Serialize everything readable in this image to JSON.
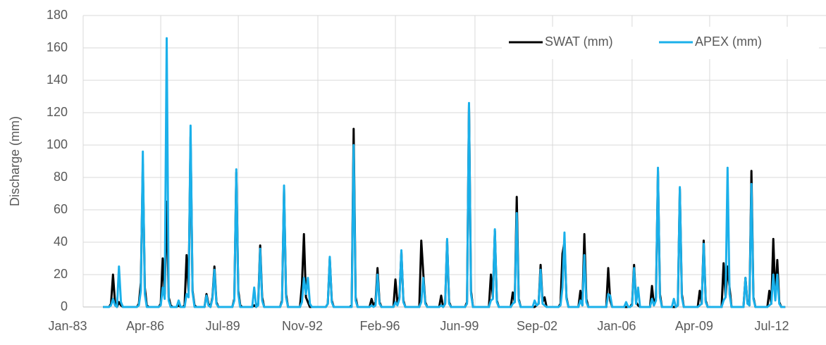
{
  "chart_data": {
    "type": "line",
    "ylabel": "Discharge (mm)",
    "x": [
      "Jan-83",
      "Feb-83",
      "Mar-83",
      "Apr-83",
      "May-83",
      "Jun-83",
      "Jul-83",
      "Aug-83",
      "Sep-83",
      "Oct-83",
      "Nov-83",
      "Dec-83",
      "Jan-84",
      "Feb-84",
      "Mar-84",
      "Apr-84",
      "May-84",
      "Jun-84",
      "Jul-84",
      "Aug-84",
      "Sep-84",
      "Oct-84",
      "Nov-84",
      "Dec-84",
      "Jan-85",
      "Feb-85",
      "Mar-85",
      "Apr-85",
      "May-85",
      "Jun-85",
      "Jul-85",
      "Aug-85",
      "Sep-85",
      "Oct-85",
      "Nov-85",
      "Dec-85",
      "Jan-86",
      "Feb-86",
      "Mar-86",
      "Apr-86",
      "May-86",
      "Jun-86",
      "Jul-86",
      "Aug-86",
      "Sep-86",
      "Oct-86",
      "Nov-86",
      "Dec-86",
      "Jan-87",
      "Feb-87",
      "Mar-87",
      "Apr-87",
      "May-87",
      "Jun-87",
      "Jul-87",
      "Aug-87",
      "Sep-87",
      "Oct-87",
      "Nov-87",
      "Dec-87",
      "Jan-88",
      "Feb-88",
      "Mar-88",
      "Apr-88",
      "May-88",
      "Jun-88",
      "Jul-88",
      "Aug-88",
      "Sep-88",
      "Oct-88",
      "Nov-88",
      "Dec-88",
      "Jan-89",
      "Feb-89",
      "Mar-89",
      "Apr-89",
      "May-89",
      "Jun-89",
      "Jul-89",
      "Aug-89",
      "Sep-89",
      "Oct-89",
      "Nov-89",
      "Dec-89",
      "Jan-90",
      "Feb-90",
      "Mar-90",
      "Apr-90",
      "May-90",
      "Jun-90",
      "Jul-90",
      "Aug-90",
      "Sep-90",
      "Oct-90",
      "Nov-90",
      "Dec-90",
      "Jan-91",
      "Feb-91",
      "Mar-91",
      "Apr-91",
      "May-91",
      "Jun-91",
      "Jul-91",
      "Aug-91",
      "Sep-91",
      "Oct-91",
      "Nov-91",
      "Dec-91",
      "Jan-92",
      "Feb-92",
      "Mar-92",
      "Apr-92",
      "May-92",
      "Jun-92",
      "Jul-92",
      "Aug-92",
      "Sep-92",
      "Oct-92",
      "Nov-92",
      "Dec-92",
      "Jan-93",
      "Feb-93",
      "Mar-93",
      "Apr-93",
      "May-93",
      "Jun-93",
      "Jul-93",
      "Aug-93",
      "Sep-93",
      "Oct-93",
      "Nov-93",
      "Dec-93",
      "Jan-94",
      "Feb-94",
      "Mar-94",
      "Apr-94",
      "May-94",
      "Jun-94",
      "Jul-94",
      "Aug-94",
      "Sep-94",
      "Oct-94",
      "Nov-94",
      "Dec-94",
      "Jan-95",
      "Feb-95",
      "Mar-95",
      "Apr-95",
      "May-95",
      "Jun-95",
      "Jul-95",
      "Aug-95",
      "Sep-95",
      "Oct-95",
      "Nov-95",
      "Dec-95",
      "Jan-96",
      "Feb-96",
      "Mar-96",
      "Apr-96",
      "May-96",
      "Jun-96",
      "Jul-96",
      "Aug-96",
      "Sep-96",
      "Oct-96",
      "Nov-96",
      "Dec-96",
      "Jan-97",
      "Feb-97",
      "Mar-97",
      "Apr-97",
      "May-97",
      "Jun-97",
      "Jul-97",
      "Aug-97",
      "Sep-97",
      "Oct-97",
      "Nov-97",
      "Dec-97",
      "Jan-98",
      "Feb-98",
      "Mar-98",
      "Apr-98",
      "May-98",
      "Jun-98",
      "Jul-98",
      "Aug-98",
      "Sep-98",
      "Oct-98",
      "Nov-98",
      "Dec-98",
      "Jan-99",
      "Feb-99",
      "Mar-99",
      "Apr-99",
      "May-99",
      "Jun-99",
      "Jul-99",
      "Aug-99",
      "Sep-99",
      "Oct-99",
      "Nov-99",
      "Dec-99",
      "Jan-00",
      "Feb-00",
      "Mar-00",
      "Apr-00",
      "May-00",
      "Jun-00",
      "Jul-00",
      "Aug-00",
      "Sep-00",
      "Oct-00",
      "Nov-00",
      "Dec-00",
      "Jan-01",
      "Feb-01",
      "Mar-01",
      "Apr-01",
      "May-01",
      "Jun-01",
      "Jul-01",
      "Aug-01",
      "Sep-01",
      "Oct-01",
      "Nov-01",
      "Dec-01",
      "Jan-02",
      "Feb-02",
      "Mar-02",
      "Apr-02",
      "May-02",
      "Jun-02",
      "Jul-02",
      "Aug-02",
      "Sep-02",
      "Oct-02",
      "Nov-02",
      "Dec-02",
      "Jan-03",
      "Feb-03",
      "Mar-03",
      "Apr-03",
      "May-03",
      "Jun-03",
      "Jul-03",
      "Aug-03",
      "Sep-03",
      "Oct-03",
      "Nov-03",
      "Dec-03",
      "Jan-04",
      "Feb-04",
      "Mar-04",
      "Apr-04",
      "May-04",
      "Jun-04",
      "Jul-04",
      "Aug-04",
      "Sep-04",
      "Oct-04",
      "Nov-04",
      "Dec-04",
      "Jan-05",
      "Feb-05",
      "Mar-05",
      "Apr-05",
      "May-05",
      "Jun-05",
      "Jul-05",
      "Aug-05",
      "Sep-05",
      "Oct-05",
      "Nov-05",
      "Dec-05",
      "Jan-06",
      "Feb-06",
      "Mar-06",
      "Apr-06",
      "May-06",
      "Jun-06",
      "Jul-06",
      "Aug-06",
      "Sep-06",
      "Oct-06",
      "Nov-06",
      "Dec-06",
      "Jan-07",
      "Feb-07",
      "Mar-07",
      "Apr-07",
      "May-07",
      "Jun-07",
      "Jul-07",
      "Aug-07",
      "Sep-07",
      "Oct-07",
      "Nov-07",
      "Dec-07",
      "Jan-08",
      "Feb-08",
      "Mar-08",
      "Apr-08",
      "May-08",
      "Jun-08",
      "Jul-08",
      "Aug-08",
      "Sep-08",
      "Oct-08",
      "Nov-08",
      "Dec-08",
      "Jan-09",
      "Feb-09",
      "Mar-09",
      "Apr-09",
      "May-09",
      "Jun-09",
      "Jul-09",
      "Aug-09",
      "Sep-09",
      "Oct-09",
      "Nov-09",
      "Dec-09",
      "Jan-10",
      "Feb-10",
      "Mar-10",
      "Apr-10",
      "May-10",
      "Jun-10",
      "Jul-10",
      "Aug-10",
      "Sep-10",
      "Oct-10",
      "Nov-10",
      "Dec-10",
      "Jan-11",
      "Feb-11",
      "Mar-11",
      "Apr-11",
      "May-11",
      "Jun-11",
      "Jul-11",
      "Aug-11",
      "Sep-11",
      "Oct-11",
      "Nov-11",
      "Dec-11",
      "Jan-12",
      "Feb-12",
      "Mar-12",
      "Apr-12",
      "May-12",
      "Jun-12",
      "Jul-12"
    ],
    "series": [
      {
        "name": "SWAT (mm)",
        "color": "#000000",
        "values": [
          null,
          null,
          null,
          null,
          null,
          null,
          null,
          null,
          null,
          null,
          0,
          0,
          0,
          0,
          2,
          20,
          3,
          0,
          3,
          1,
          0,
          0,
          0,
          0,
          0,
          0,
          0,
          0,
          2,
          15,
          88,
          12,
          1,
          0,
          0,
          0,
          0,
          0,
          0,
          2,
          30,
          8,
          65,
          6,
          1,
          0,
          0,
          0,
          1,
          0,
          0,
          1,
          32,
          10,
          105,
          10,
          1,
          0,
          0,
          0,
          0,
          0,
          8,
          2,
          0,
          6,
          25,
          3,
          0,
          0,
          0,
          0,
          0,
          0,
          0,
          0,
          5,
          83,
          10,
          1,
          0,
          0,
          0,
          0,
          0,
          0,
          1,
          0,
          2,
          38,
          6,
          0,
          0,
          0,
          0,
          0,
          0,
          0,
          0,
          0,
          4,
          73,
          8,
          0,
          0,
          0,
          0,
          0,
          0,
          0,
          14,
          45,
          6,
          3,
          0,
          0,
          0,
          0,
          0,
          0,
          0,
          0,
          0,
          2,
          30,
          4,
          0,
          0,
          0,
          0,
          0,
          0,
          0,
          0,
          0,
          1,
          110,
          6,
          0,
          0,
          0,
          0,
          0,
          0,
          0,
          5,
          1,
          3,
          24,
          3,
          0,
          0,
          0,
          0,
          0,
          0,
          0,
          17,
          3,
          6,
          34,
          4,
          0,
          0,
          0,
          0,
          0,
          0,
          0,
          0,
          41,
          21,
          3,
          0,
          0,
          0,
          0,
          0,
          0,
          0,
          7,
          0,
          2,
          41,
          3,
          0,
          0,
          0,
          0,
          0,
          0,
          0,
          0,
          3,
          125,
          10,
          0,
          0,
          0,
          0,
          0,
          0,
          0,
          0,
          0,
          20,
          6,
          47,
          4,
          0,
          0,
          0,
          0,
          0,
          0,
          0,
          9,
          3,
          68,
          5,
          0,
          0,
          0,
          0,
          0,
          0,
          0,
          0,
          1,
          2,
          26,
          3,
          6,
          0,
          0,
          0,
          0,
          0,
          0,
          0,
          2,
          33,
          40,
          6,
          0,
          0,
          0,
          0,
          0,
          0,
          10,
          1,
          45,
          5,
          0,
          0,
          0,
          0,
          0,
          0,
          0,
          0,
          0,
          0,
          24,
          4,
          0,
          0,
          0,
          0,
          0,
          0,
          0,
          0,
          0,
          0,
          2,
          26,
          3,
          1,
          0,
          0,
          0,
          0,
          0,
          0,
          13,
          1,
          6,
          84,
          8,
          0,
          0,
          0,
          0,
          0,
          0,
          0,
          0,
          1,
          73,
          8,
          0,
          0,
          0,
          0,
          0,
          0,
          0,
          0,
          10,
          2,
          41,
          4,
          0,
          0,
          0,
          0,
          0,
          0,
          0,
          0,
          27,
          6,
          25,
          12,
          0,
          0,
          0,
          0,
          0,
          0,
          0,
          18,
          3,
          1,
          84,
          6,
          0,
          0,
          0,
          0,
          0,
          0,
          0,
          10,
          2,
          42,
          6,
          29,
          3,
          0,
          0,
          0,
          null
        ]
      },
      {
        "name": "APEX (mm)",
        "color": "#1ab0ea",
        "values": [
          null,
          null,
          null,
          null,
          null,
          null,
          null,
          null,
          null,
          null,
          0,
          0,
          0,
          0,
          1,
          5,
          1,
          0,
          25,
          3,
          0,
          0,
          0,
          0,
          0,
          0,
          0,
          0,
          1,
          10,
          96,
          8,
          0,
          0,
          0,
          0,
          0,
          0,
          0,
          1,
          12,
          5,
          166,
          4,
          0,
          0,
          0,
          0,
          4,
          0,
          0,
          0,
          8,
          6,
          112,
          9,
          0,
          0,
          0,
          0,
          0,
          0,
          7,
          1,
          0,
          5,
          23,
          2,
          0,
          0,
          0,
          0,
          0,
          0,
          0,
          0,
          4,
          85,
          8,
          0,
          0,
          0,
          0,
          0,
          0,
          0,
          12,
          0,
          1,
          36,
          4,
          0,
          0,
          0,
          0,
          0,
          0,
          0,
          0,
          0,
          3,
          75,
          6,
          0,
          0,
          0,
          0,
          0,
          0,
          0,
          3,
          18,
          8,
          18,
          2,
          0,
          0,
          0,
          0,
          0,
          0,
          0,
          0,
          2,
          31,
          3,
          0,
          0,
          0,
          0,
          0,
          0,
          0,
          0,
          0,
          0,
          100,
          4,
          0,
          0,
          0,
          0,
          0,
          0,
          0,
          1,
          0,
          1,
          20,
          2,
          0,
          0,
          0,
          0,
          0,
          0,
          0,
          3,
          1,
          5,
          35,
          3,
          0,
          0,
          0,
          0,
          0,
          0,
          0,
          0,
          3,
          18,
          2,
          0,
          0,
          0,
          0,
          0,
          0,
          0,
          1,
          0,
          2,
          42,
          2,
          0,
          0,
          0,
          0,
          0,
          0,
          0,
          0,
          2,
          126,
          8,
          0,
          0,
          0,
          0,
          0,
          0,
          0,
          0,
          0,
          4,
          5,
          48,
          3,
          0,
          0,
          0,
          0,
          0,
          0,
          0,
          2,
          3,
          58,
          4,
          0,
          0,
          0,
          0,
          0,
          0,
          0,
          4,
          1,
          2,
          23,
          2,
          1,
          0,
          0,
          0,
          0,
          0,
          0,
          0,
          1,
          12,
          46,
          5,
          0,
          0,
          0,
          0,
          0,
          0,
          4,
          1,
          32,
          3,
          0,
          0,
          0,
          0,
          0,
          0,
          0,
          0,
          0,
          0,
          8,
          7,
          0,
          0,
          0,
          0,
          0,
          0,
          0,
          3,
          0,
          0,
          1,
          24,
          2,
          12,
          0,
          0,
          0,
          0,
          0,
          0,
          5,
          1,
          4,
          86,
          6,
          0,
          0,
          0,
          0,
          0,
          0,
          5,
          0,
          1,
          74,
          6,
          0,
          0,
          0,
          0,
          0,
          0,
          0,
          0,
          1,
          2,
          39,
          3,
          0,
          0,
          0,
          0,
          0,
          0,
          0,
          0,
          4,
          6,
          86,
          8,
          0,
          0,
          0,
          0,
          0,
          0,
          0,
          18,
          2,
          1,
          76,
          5,
          0,
          0,
          0,
          0,
          0,
          0,
          0,
          1,
          2,
          20,
          4,
          20,
          2,
          0,
          0,
          0,
          null
        ]
      }
    ],
    "xticks": [
      "Jan-83",
      "Apr-86",
      "Jul-89",
      "Nov-92",
      "Feb-96",
      "Jun-99",
      "Sep-02",
      "Jan-06",
      "Apr-09",
      "Jul-12"
    ],
    "ylim": [
      0,
      180
    ],
    "yticks": [
      0,
      20,
      40,
      60,
      80,
      100,
      120,
      140,
      160,
      180
    ],
    "grid": true,
    "legend": "top-right"
  }
}
